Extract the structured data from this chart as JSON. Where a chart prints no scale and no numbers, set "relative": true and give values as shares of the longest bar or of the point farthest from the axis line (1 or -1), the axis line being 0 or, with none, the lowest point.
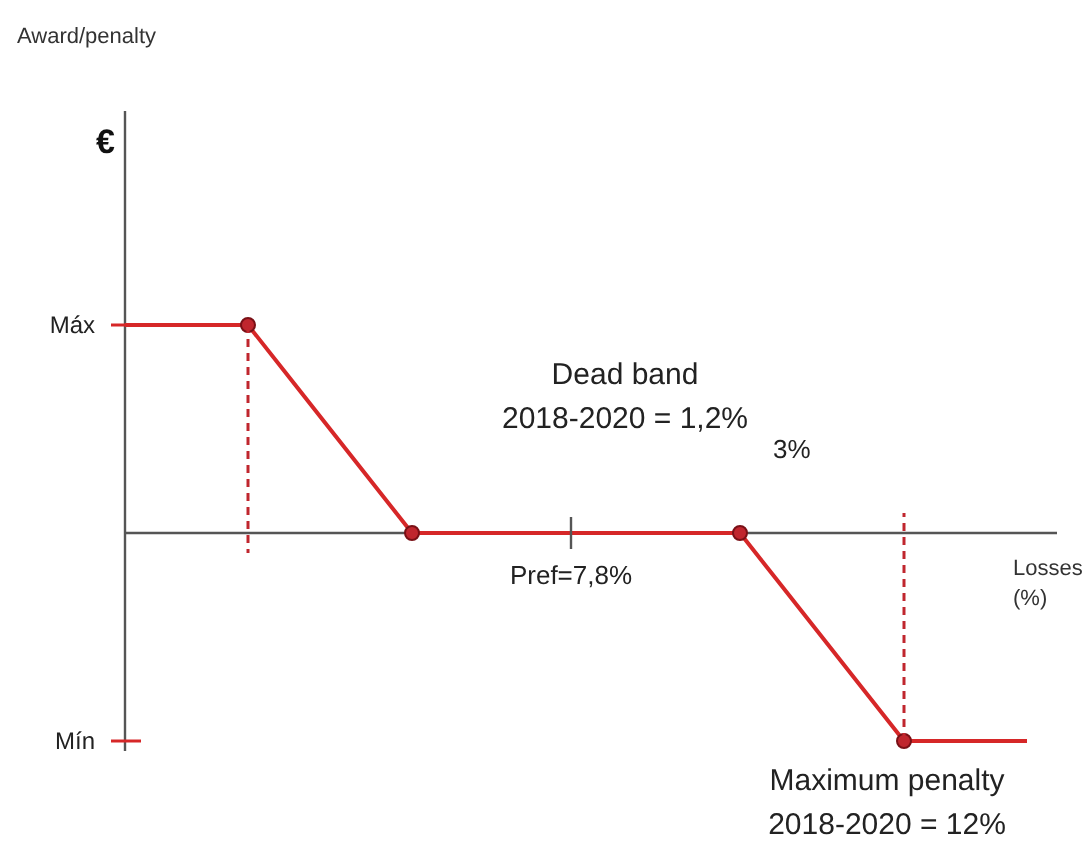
{
  "chart_data": {
    "type": "line",
    "relative": true,
    "title": "Award/penalty",
    "ylabel": "€",
    "xlabel": "Losses (%)",
    "categories": [
      null,
      null,
      null,
      null,
      null,
      null,
      null,
      null,
      null,
      null,
      null,
      null,
      null,
      null,
      null,
      null,
      null,
      null,
      null,
      null,
      null,
      null,
      null
    ],
    "series": [
      {
        "color": "#d62728",
        "values": [
          1,
          1,
          1,
          1,
          0.75,
          0.5,
          0.25,
          0,
          0,
          0,
          0,
          0,
          0,
          0,
          0,
          0,
          -0.25,
          -0.5,
          -0.75,
          -1,
          -1,
          -1,
          -1
        ],
        "marker": "none",
        "line_style": "solid"
      },
      {
        "color": "#c0262e",
        "values": [
          null,
          null,
          null,
          1,
          null,
          null,
          null,
          0,
          null,
          null,
          null,
          null,
          null,
          null,
          null,
          0,
          null,
          null,
          null,
          -1,
          null,
          null,
          null
        ],
        "marker": "circle",
        "line_style": "dashed"
      }
    ],
    "annotations": [
      "Máx",
      "Mín",
      "Pref=7,8%",
      "Dead band\n2018-2020 = 1,2%",
      "3%",
      "Maximum penalty\n2018-2020 = 12%"
    ]
  }
}
